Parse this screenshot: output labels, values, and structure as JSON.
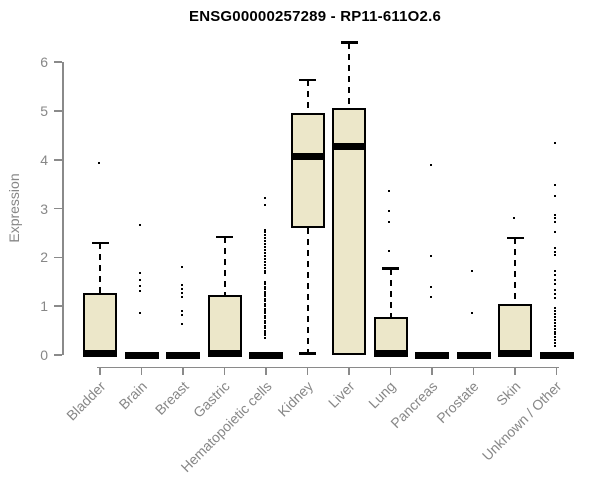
{
  "chart_data": {
    "type": "boxplot",
    "title": "ENSG00000257289 - RP11-611O2.6",
    "ylabel": "Expression",
    "ylim": [
      0,
      6.5
    ],
    "yticks": [
      0,
      1,
      2,
      3,
      4,
      5,
      6
    ],
    "grid": false,
    "legend": "none",
    "categories": [
      "Bladder",
      "Brain",
      "Breast",
      "Gastric",
      "Hematopoietic cells",
      "Kidney",
      "Liver",
      "Lung",
      "Pancreas",
      "Prostate",
      "Skin",
      "Unknown / Other"
    ],
    "series": [
      {
        "category": "Bladder",
        "whisker_low": 0,
        "q1": 0,
        "median": 0.04,
        "q3": 1.27,
        "whisker_high": 2.29,
        "outliers": [
          3.9
        ]
      },
      {
        "category": "Brain",
        "whisker_low": 0,
        "q1": 0,
        "median": 0,
        "q3": 0,
        "whisker_high": 0,
        "outliers": [
          2.63,
          1.64,
          1.5,
          1.39,
          1.29,
          0.84
        ]
      },
      {
        "category": "Breast",
        "whisker_low": 0,
        "q1": 0,
        "median": 0,
        "q3": 0,
        "whisker_high": 0,
        "outliers": [
          1.77,
          1.4,
          1.32,
          1.24,
          1.15,
          0.87,
          0.78,
          0.6
        ]
      },
      {
        "category": "Gastric",
        "whisker_low": 0,
        "q1": 0,
        "median": 0.04,
        "q3": 1.23,
        "whisker_high": 2.42,
        "outliers": []
      },
      {
        "category": "Hematopoietic cells",
        "whisker_low": 0,
        "q1": 0,
        "median": 0,
        "q3": 0,
        "whisker_high": 0,
        "outliers": [
          3.19,
          3.05,
          2.54,
          2.48,
          2.42,
          2.36,
          2.3,
          2.24,
          2.18,
          2.12,
          2.06,
          2.0,
          1.94,
          1.88,
          1.82,
          1.76,
          1.7,
          1.64,
          1.47,
          1.42,
          1.37,
          1.32,
          1.27,
          1.22,
          1.17,
          1.12,
          1.07,
          1.02,
          0.97,
          0.92,
          0.87,
          0.82,
          0.77,
          0.72,
          0.67,
          0.62,
          0.57,
          0.52,
          0.47,
          0.42,
          0.37,
          0.32
        ]
      },
      {
        "category": "Kidney",
        "whisker_low": 0.03,
        "q1": 2.6,
        "median": 4.06,
        "q3": 4.96,
        "whisker_high": 5.64,
        "outliers": []
      },
      {
        "category": "Liver",
        "whisker_low": 0,
        "q1": 0,
        "median": 4.28,
        "q3": 5.06,
        "whisker_high": 6.4,
        "outliers": []
      },
      {
        "category": "Lung",
        "whisker_low": 0,
        "q1": 0,
        "median": 0.04,
        "q3": 0.78,
        "whisker_high": 1.77,
        "outliers": [
          3.32,
          2.92,
          2.7,
          2.1
        ]
      },
      {
        "category": "Pancreas",
        "whisker_low": 0,
        "q1": 0,
        "median": 0,
        "q3": 0,
        "whisker_high": 0,
        "outliers": [
          3.86,
          2.0,
          1.37,
          1.15
        ]
      },
      {
        "category": "Prostate",
        "whisker_low": 0,
        "q1": 0,
        "median": 0,
        "q3": 0,
        "whisker_high": 0,
        "outliers": [
          1.69,
          0.84
        ]
      },
      {
        "category": "Skin",
        "whisker_low": 0,
        "q1": 0,
        "median": 0.04,
        "q3": 1.05,
        "whisker_high": 2.4,
        "outliers": [
          2.78
        ]
      },
      {
        "category": "Unknown / Other",
        "whisker_low": 0,
        "q1": 0,
        "median": 0,
        "q3": 0,
        "whisker_high": 0,
        "outliers": [
          4.31,
          3.46,
          3.22,
          2.84,
          2.77,
          2.7,
          2.48,
          2.16,
          2.09,
          2.02,
          1.69,
          1.61,
          1.5,
          1.43,
          1.31,
          1.22,
          1.14,
          0.93,
          0.87,
          0.81,
          0.75,
          0.69,
          0.63,
          0.57,
          0.51,
          0.45,
          0.39,
          0.33,
          0.27,
          0.21,
          0.15
        ]
      }
    ],
    "colors": {
      "box_fill": "#ece7c9",
      "box_border": "#000000",
      "whisker": "#000000",
      "outlier": "#000000",
      "axis_line": "#8a8a8a",
      "tick_text": "#878787",
      "title_text": "#000000"
    }
  }
}
